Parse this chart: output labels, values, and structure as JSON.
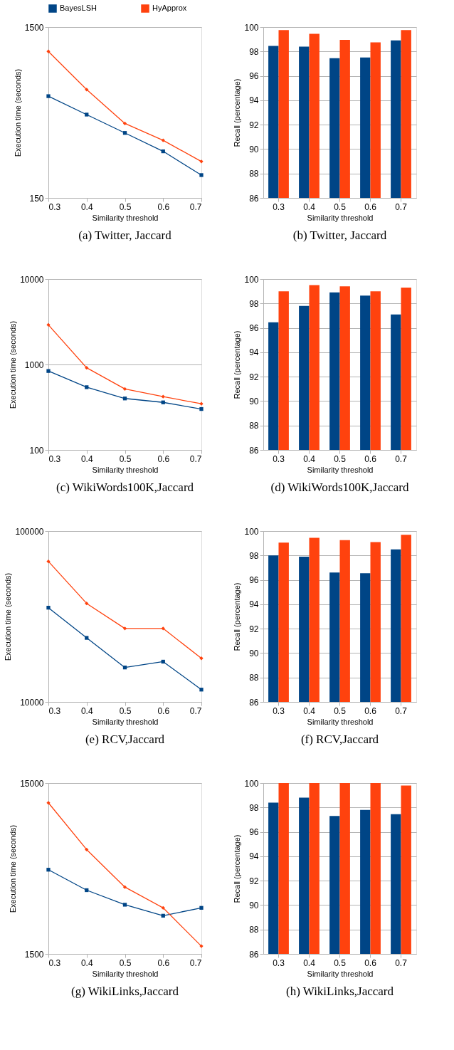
{
  "chart_data": [
    {
      "type": "line",
      "title": "(a) Twitter, Jaccard",
      "xlabel": "Similarity threshold",
      "ylabel": "Execution time (seconds)",
      "categories": [
        "0.3",
        "0.4",
        "0.5",
        "0.6",
        "0.7"
      ],
      "log": "y",
      "ylim": [
        150,
        1500
      ],
      "yticks": [
        150,
        1500
      ],
      "grid": "y",
      "legend": "top",
      "series": [
        {
          "name": "BayesLSH",
          "color": "#004586",
          "marker": "square",
          "values": [
            591,
            461,
            360,
            281,
            204
          ]
        },
        {
          "name": "HyApprox",
          "color": "#ff420e",
          "marker": "diamond",
          "values": [
            1080,
            646,
            409,
            326,
            245
          ]
        }
      ]
    },
    {
      "type": "bar",
      "title": "(b) Twitter, Jaccard",
      "xlabel": "Similarity threshold",
      "ylabel": "Recall (percentage)",
      "categories": [
        "0.3",
        "0.4",
        "0.5",
        "0.6",
        "0.7"
      ],
      "ylim": [
        86,
        100
      ],
      "yticks": [
        86,
        88,
        90,
        92,
        94,
        96,
        98,
        100
      ],
      "grid": "y",
      "series": [
        {
          "color": "#004586",
          "values": [
            98.45,
            98.4,
            97.45,
            97.5,
            98.9
          ]
        },
        {
          "color": "#ff420e",
          "values": [
            99.75,
            99.45,
            98.95,
            98.75,
            99.75
          ]
        }
      ]
    },
    {
      "type": "line",
      "title": "(c) WikiWords100K,Jaccard",
      "xlabel": "Similarity threshold",
      "ylabel": "Execution time (seconds)",
      "categories": [
        "0.3",
        "0.4",
        "0.5",
        "0.6",
        "0.7"
      ],
      "log": "y",
      "ylim": [
        100,
        10000
      ],
      "yticks": [
        100,
        1000,
        10000
      ],
      "grid": "y",
      "series": [
        {
          "color": "#004586",
          "marker": "square",
          "values": [
            839,
            542,
            400,
            360,
            301
          ]
        },
        {
          "color": "#ff420e",
          "marker": "diamond",
          "values": [
            2911,
            914,
            517,
            420,
            347
          ]
        }
      ]
    },
    {
      "type": "bar",
      "title": "(d) WikiWords100K,Jaccard",
      "xlabel": "Similarity threshold",
      "ylabel": "Recall (percentage)",
      "categories": [
        "0.3",
        "0.4",
        "0.5",
        "0.6",
        "0.7"
      ],
      "ylim": [
        86,
        100
      ],
      "yticks": [
        86,
        88,
        90,
        92,
        94,
        96,
        98,
        100
      ],
      "grid": "y",
      "series": [
        {
          "color": "#004586",
          "values": [
            96.45,
            97.8,
            98.9,
            98.65,
            97.1
          ]
        },
        {
          "color": "#ff420e",
          "values": [
            99.0,
            99.5,
            99.4,
            99.0,
            99.3
          ]
        }
      ]
    },
    {
      "type": "line",
      "title": "(e) RCV,Jaccard",
      "xlabel": "Similarity threshold",
      "ylabel": "Execution time (seconds)",
      "categories": [
        "0.3",
        "0.4",
        "0.5",
        "0.6",
        "0.7"
      ],
      "log": "y",
      "ylim": [
        10000,
        100000
      ],
      "yticks": [
        10000,
        100000
      ],
      "grid": "y",
      "series": [
        {
          "color": "#004586",
          "marker": "square",
          "values": [
            35600,
            23700,
            15900,
            17200,
            11800
          ]
        },
        {
          "color": "#ff420e",
          "marker": "diamond",
          "values": [
            66400,
            37700,
            26900,
            26900,
            18000
          ]
        }
      ]
    },
    {
      "type": "bar",
      "title": "(f) RCV,Jaccard",
      "xlabel": "Similarity threshold",
      "ylabel": "Recall (percentage)",
      "categories": [
        "0.3",
        "0.4",
        "0.5",
        "0.6",
        "0.7"
      ],
      "ylim": [
        86,
        100
      ],
      "yticks": [
        86,
        88,
        90,
        92,
        94,
        96,
        98,
        100
      ],
      "grid": "y",
      "series": [
        {
          "color": "#004586",
          "values": [
            98.0,
            97.9,
            96.6,
            96.55,
            98.5
          ]
        },
        {
          "color": "#ff420e",
          "values": [
            99.05,
            99.45,
            99.25,
            99.1,
            99.7
          ]
        }
      ]
    },
    {
      "type": "line",
      "title": "(g) WikiLinks,Jaccard",
      "xlabel": "Similarity threshold",
      "ylabel": "Execution time (seconds)",
      "categories": [
        "0.3",
        "0.4",
        "0.5",
        "0.6",
        "0.7"
      ],
      "log": "y",
      "ylim": [
        1500,
        15000
      ],
      "yticks": [
        1500,
        15000
      ],
      "grid": "y",
      "series": [
        {
          "color": "#004586",
          "marker": "square",
          "values": [
            4665,
            3540,
            2910,
            2510,
            2790
          ]
        },
        {
          "color": "#ff420e",
          "marker": "diamond",
          "values": [
            11490,
            6120,
            3690,
            2790,
            1665
          ]
        }
      ]
    },
    {
      "type": "bar",
      "title": "(h) WikiLinks,Jaccard",
      "xlabel": "Similarity threshold",
      "ylabel": "Recall (percentage)",
      "categories": [
        "0.3",
        "0.4",
        "0.5",
        "0.6",
        "0.7"
      ],
      "ylim": [
        86,
        100
      ],
      "yticks": [
        86,
        88,
        90,
        92,
        94,
        96,
        98,
        100
      ],
      "grid": "y",
      "series": [
        {
          "color": "#004586",
          "values": [
            98.4,
            98.8,
            97.3,
            97.8,
            97.45
          ]
        },
        {
          "color": "#ff420e",
          "values": [
            100,
            100,
            100,
            100,
            99.8
          ]
        }
      ]
    }
  ]
}
